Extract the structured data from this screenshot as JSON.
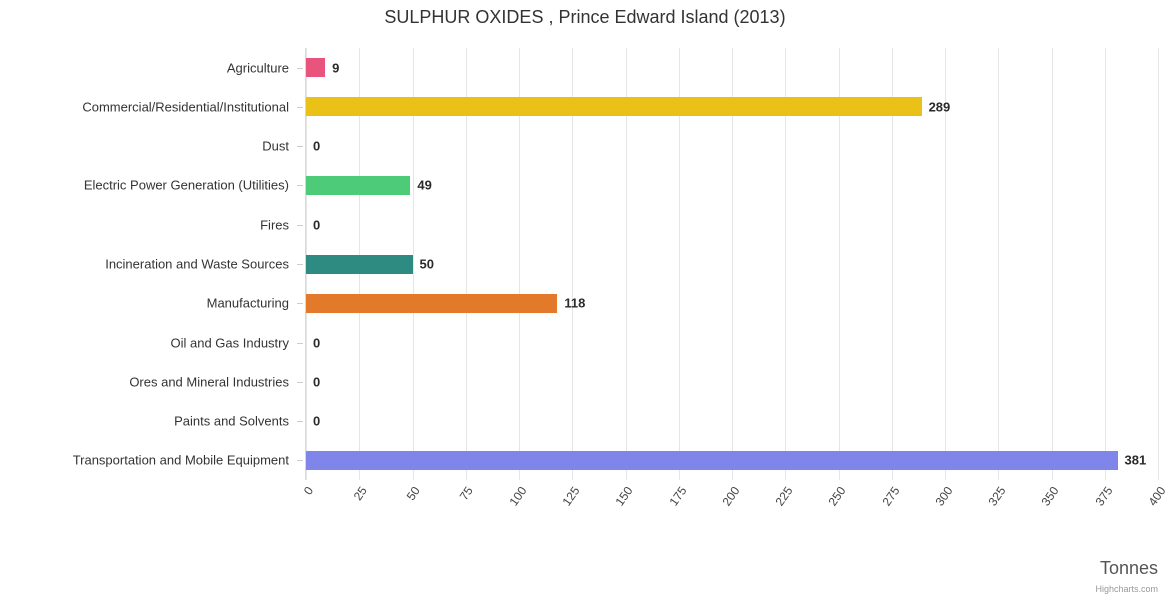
{
  "chart_data": {
    "type": "bar",
    "title": "SULPHUR OXIDES , Prince Edward Island (2013)",
    "xlabel": "Tonnes",
    "credit": "Highcharts.com",
    "categories": [
      "Agriculture",
      "Commercial/Residential/Institutional",
      "Dust",
      "Electric Power Generation (Utilities)",
      "Fires",
      "Incineration and Waste Sources",
      "Manufacturing",
      "Oil and Gas Industry",
      "Ores and Mineral Industries",
      "Paints and Solvents",
      "Transportation and Mobile Equipment"
    ],
    "values": [
      9,
      289,
      0,
      49,
      0,
      50,
      118,
      0,
      0,
      0,
      381
    ],
    "colors": [
      "#e8547b",
      "#eac116",
      null,
      "#4ecb79",
      null,
      "#2e8b82",
      "#e2792b",
      null,
      null,
      null,
      "#8085e9"
    ],
    "xlim": [
      0,
      400
    ],
    "tick_interval": 25,
    "ticks": [
      0,
      25,
      50,
      75,
      100,
      125,
      150,
      175,
      200,
      225,
      250,
      275,
      300,
      325,
      350,
      375,
      400
    ],
    "grid": true,
    "legend": false,
    "orientation": "horizontal",
    "gridline_color": "#e6e6e6"
  }
}
